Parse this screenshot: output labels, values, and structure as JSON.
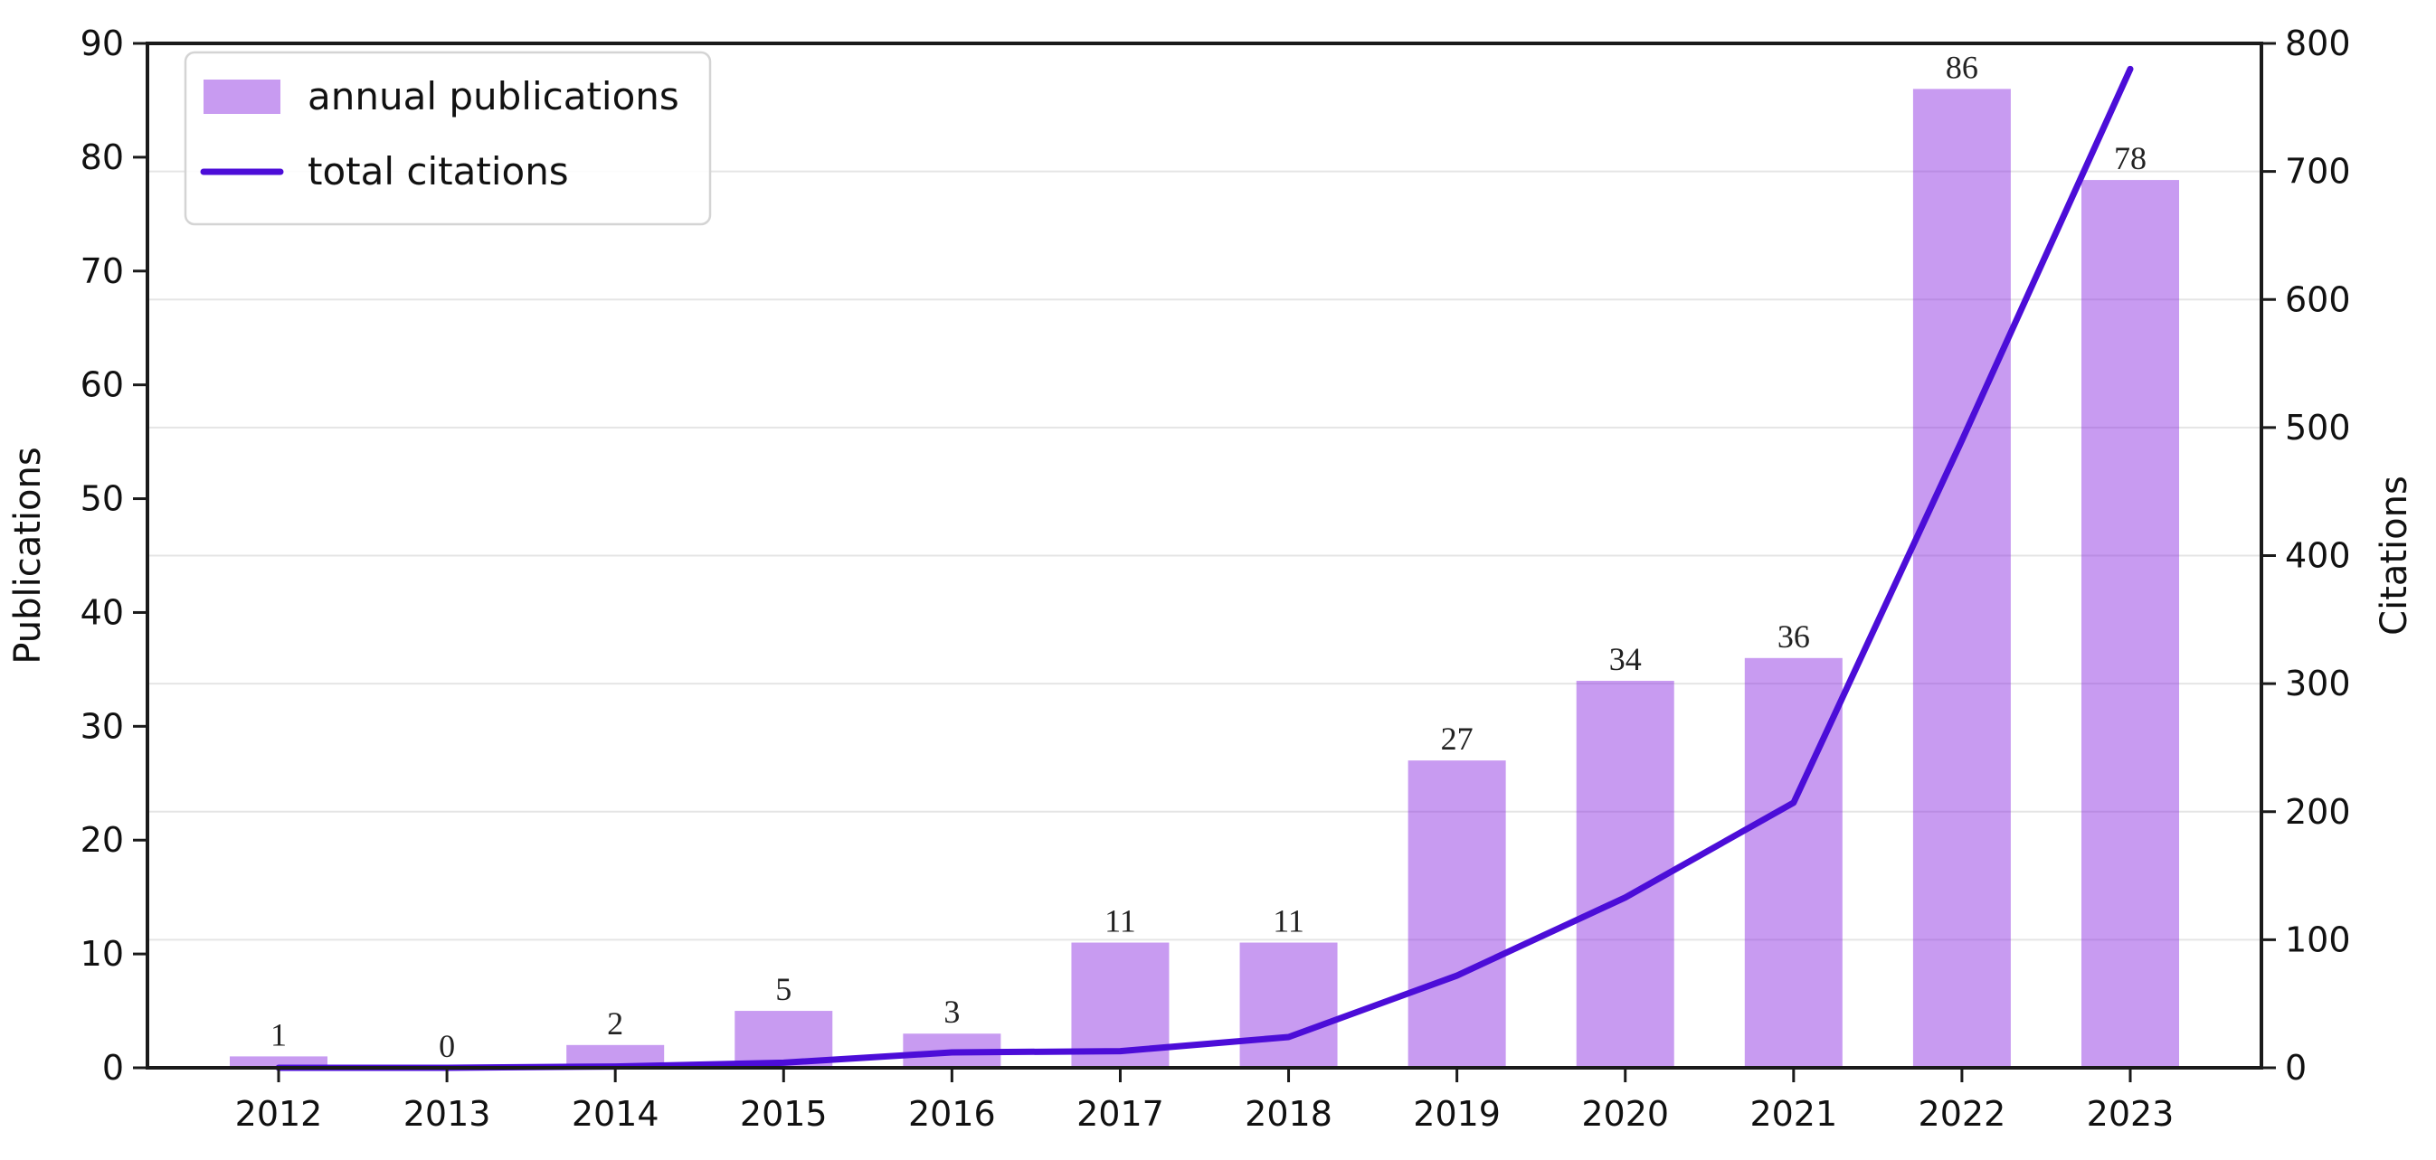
{
  "figure": {
    "left_axis_label": "Publications",
    "right_axis_label": "Citations"
  },
  "legend": {
    "position": "upper-left",
    "items": [
      {
        "label": "annual publications",
        "swatch": "bar",
        "color": "rgba(138,43,226,0.47)"
      },
      {
        "label": "total citations",
        "swatch": "line",
        "color": "#4c0dd8"
      }
    ]
  },
  "chart_data": {
    "type": "bar",
    "title": "",
    "categories": [
      "2012",
      "2013",
      "2014",
      "2015",
      "2016",
      "2017",
      "2018",
      "2019",
      "2020",
      "2021",
      "2022",
      "2023"
    ],
    "series": [
      {
        "name": "annual publications",
        "chart": "bar",
        "axis": "left",
        "color": "rgba(138,43,226,0.47)",
        "values": [
          1,
          0,
          2,
          5,
          3,
          11,
          11,
          27,
          34,
          36,
          86,
          78
        ],
        "data_labels": [
          "1",
          "0",
          "2",
          "5",
          "3",
          "11",
          "11",
          "27",
          "34",
          "36",
          "86",
          "78"
        ]
      },
      {
        "name": "total citations",
        "chart": "line",
        "axis": "right",
        "color": "#4c0dd8",
        "values": [
          0,
          0,
          1,
          4,
          12,
          13,
          24,
          72,
          133,
          207,
          490,
          780
        ]
      }
    ],
    "xlabel": "",
    "ylabel_left": "Publications",
    "ylabel_right": "Citations",
    "ylim_left": [
      0,
      90
    ],
    "ylim_right": [
      0,
      800
    ],
    "yticks_left": [
      0,
      10,
      20,
      30,
      40,
      50,
      60,
      70,
      80,
      90
    ],
    "yticks_right": [
      0,
      100,
      200,
      300,
      400,
      500,
      600,
      700,
      800
    ],
    "grid": "horizontal lines at right-axis ticks 100-700",
    "legend_position": "upper-left",
    "colors": {
      "bar": "rgba(138,43,226,0.47)",
      "line": "#4c0dd8",
      "grid": "#e5e5e5",
      "spine": "#1a1a1a",
      "text": "#111111",
      "bar_label_text": "#222222",
      "legend_border": "#d4d4d4",
      "legend_bg": "rgba(255,255,255,0.88)"
    }
  }
}
